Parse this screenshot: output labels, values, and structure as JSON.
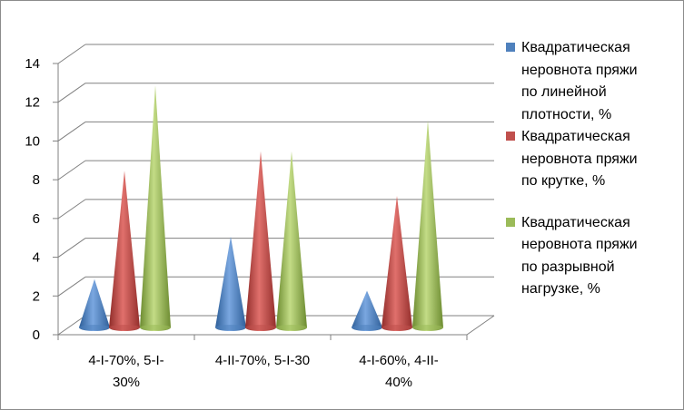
{
  "chart_data": {
    "type": "bar",
    "subtype": "3d-cone",
    "categories": [
      "4-I-70%, 5-I-30%",
      "4-II-70%, 5-I-30",
      "4-I-60%, 4-II-40%"
    ],
    "category_lines": [
      [
        "4-I-70%, 5-I-",
        "30%"
      ],
      [
        "4-II-70%, 5-I-30"
      ],
      [
        "4-I-60%, 4-II-",
        "40%"
      ]
    ],
    "series": [
      {
        "name": "Квадратическая неровнота пряжи по линейной плотности, %",
        "name_lines": [
          "Квадратическая",
          "неровнота пряжи",
          "по линейной",
          "плотности, %"
        ],
        "color": "#4f81bd",
        "values": [
          2.4,
          4.6,
          1.8
        ]
      },
      {
        "name": "Квадратическая неровнота пряжи по крутке, %",
        "name_lines": [
          "Квадратическая",
          "неровнота пряжи",
          "по крутке, %"
        ],
        "color": "#c0504d",
        "values": [
          8.0,
          9.0,
          6.7
        ]
      },
      {
        "name": "Квадратическая неровнота пряжи по разрывной нагрузке, %",
        "name_lines": [
          "Квадратическая",
          "неровнота пряжи",
          "по разрывной",
          "нагрузке, %"
        ],
        "color": "#9bbb59",
        "values": [
          12.4,
          9.0,
          10.6
        ]
      }
    ],
    "yticks": [
      "0",
      "2",
      "4",
      "6",
      "8",
      "10",
      "12",
      "14"
    ],
    "ylim": [
      0,
      14
    ],
    "grid": true,
    "legend_position": "right"
  }
}
